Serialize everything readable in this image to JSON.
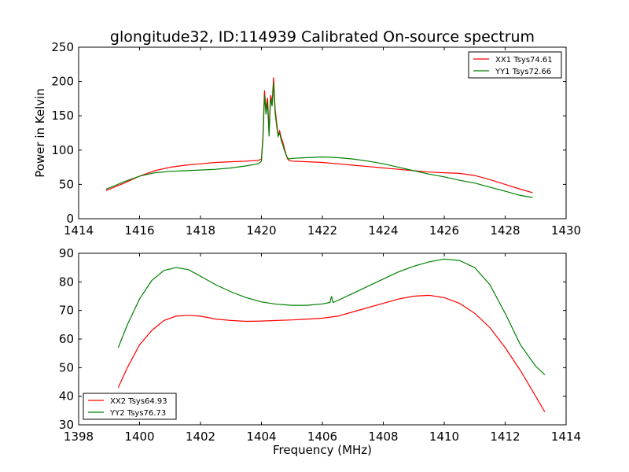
{
  "figure_title": "glongitude32, ID:114939 Calibrated On-source spectrum",
  "chart_data": [
    {
      "type": "line",
      "title": "glongitude32, ID:114939 Calibrated On-source spectrum",
      "xlabel": "",
      "ylabel": "Power in Kelvin",
      "xlim": [
        1414,
        1430
      ],
      "ylim": [
        0,
        250
      ],
      "xticks": [
        1414,
        1416,
        1418,
        1420,
        1422,
        1424,
        1426,
        1428,
        1430
      ],
      "yticks": [
        0,
        50,
        100,
        150,
        200,
        250
      ],
      "grid": false,
      "legend_position": "top-right",
      "series": [
        {
          "name": "XX1 Tsys74.61",
          "color": "#ff0000",
          "x": [
            1414.9,
            1415.5,
            1416.0,
            1416.5,
            1417.0,
            1417.5,
            1418.0,
            1418.5,
            1419.0,
            1419.5,
            1419.9,
            1420.0,
            1420.05,
            1420.1,
            1420.15,
            1420.2,
            1420.25,
            1420.3,
            1420.35,
            1420.4,
            1420.45,
            1420.5,
            1420.55,
            1420.6,
            1420.65,
            1420.7,
            1420.75,
            1420.8,
            1420.85,
            1420.9,
            1421.0,
            1421.5,
            1422.0,
            1422.5,
            1423.0,
            1423.5,
            1424.0,
            1424.5,
            1425.0,
            1425.5,
            1426.0,
            1426.5,
            1427.0,
            1427.5,
            1428.0,
            1428.5,
            1428.9
          ],
          "y": [
            41,
            52,
            62,
            70,
            75,
            78,
            80,
            82,
            83,
            84,
            85,
            87,
            120,
            187,
            160,
            176,
            128,
            180,
            170,
            206,
            160,
            140,
            122,
            128,
            118,
            112,
            103,
            95,
            88,
            85,
            84,
            83,
            82,
            80,
            78,
            76,
            74,
            72,
            70,
            68,
            67,
            66,
            63,
            57,
            50,
            43,
            38
          ]
        },
        {
          "name": "YY1 Tsys72.66",
          "color": "#008000",
          "x": [
            1414.9,
            1415.5,
            1416.0,
            1416.5,
            1417.0,
            1417.5,
            1418.0,
            1418.5,
            1419.0,
            1419.5,
            1419.9,
            1420.0,
            1420.05,
            1420.1,
            1420.15,
            1420.2,
            1420.25,
            1420.3,
            1420.35,
            1420.4,
            1420.45,
            1420.5,
            1420.55,
            1420.6,
            1420.65,
            1420.7,
            1420.75,
            1420.8,
            1420.85,
            1420.9,
            1421.0,
            1421.5,
            1422.0,
            1422.5,
            1423.0,
            1423.5,
            1424.0,
            1424.5,
            1425.0,
            1425.5,
            1426.0,
            1426.5,
            1427.0,
            1427.5,
            1428.0,
            1428.5,
            1428.9
          ],
          "y": [
            43,
            54,
            62,
            67,
            69,
            70,
            71,
            72,
            74,
            77,
            80,
            84,
            115,
            180,
            152,
            170,
            120,
            175,
            164,
            198,
            154,
            135,
            120,
            125,
            114,
            108,
            100,
            94,
            89,
            87,
            88,
            89,
            90,
            89,
            87,
            84,
            80,
            75,
            70,
            65,
            61,
            56,
            52,
            46,
            40,
            34,
            31
          ]
        }
      ]
    },
    {
      "type": "line",
      "title": "",
      "xlabel": "Frequency (MHz)",
      "ylabel": "",
      "xlim": [
        1398,
        1414
      ],
      "ylim": [
        30,
        90
      ],
      "xticks": [
        1398,
        1400,
        1402,
        1404,
        1406,
        1408,
        1410,
        1412,
        1414
      ],
      "yticks": [
        30,
        40,
        50,
        60,
        70,
        80,
        90
      ],
      "grid": false,
      "legend_position": "bottom-left",
      "series": [
        {
          "name": "XX2 Tsys64.93",
          "color": "#ff0000",
          "x": [
            1399.3,
            1399.6,
            1400.0,
            1400.4,
            1400.8,
            1401.2,
            1401.6,
            1402.0,
            1402.5,
            1403.0,
            1403.5,
            1404.0,
            1404.5,
            1405.0,
            1405.5,
            1406.0,
            1406.5,
            1407.0,
            1407.5,
            1408.0,
            1408.5,
            1409.0,
            1409.5,
            1410.0,
            1410.5,
            1411.0,
            1411.5,
            1412.0,
            1412.5,
            1413.0,
            1413.3
          ],
          "y": [
            43,
            50,
            58,
            63,
            66.5,
            68,
            68.3,
            68,
            67,
            66.5,
            66.2,
            66.3,
            66.5,
            66.7,
            67,
            67.3,
            68,
            69.5,
            71,
            72.5,
            74,
            75,
            75.3,
            74.5,
            72.5,
            69,
            64,
            57,
            49,
            40,
            34.5
          ]
        },
        {
          "name": "YY2 Tsys76.73",
          "color": "#008000",
          "x": [
            1399.3,
            1399.6,
            1400.0,
            1400.4,
            1400.8,
            1401.2,
            1401.6,
            1402.0,
            1402.5,
            1403.0,
            1403.5,
            1404.0,
            1404.5,
            1405.0,
            1405.5,
            1406.0,
            1406.25,
            1406.3,
            1406.35,
            1406.5,
            1407.0,
            1407.5,
            1408.0,
            1408.5,
            1409.0,
            1409.5,
            1410.0,
            1410.5,
            1411.0,
            1411.5,
            1412.0,
            1412.5,
            1413.0,
            1413.3
          ],
          "y": [
            57,
            65,
            74,
            80.5,
            84,
            85,
            84.3,
            82,
            79,
            76.5,
            74.5,
            73,
            72.2,
            71.8,
            71.8,
            72.3,
            72.8,
            75,
            72.8,
            73.5,
            76,
            78.5,
            81,
            83.5,
            85.5,
            87,
            88,
            87.5,
            85,
            79,
            69,
            58,
            50.5,
            47.5
          ]
        }
      ]
    }
  ]
}
